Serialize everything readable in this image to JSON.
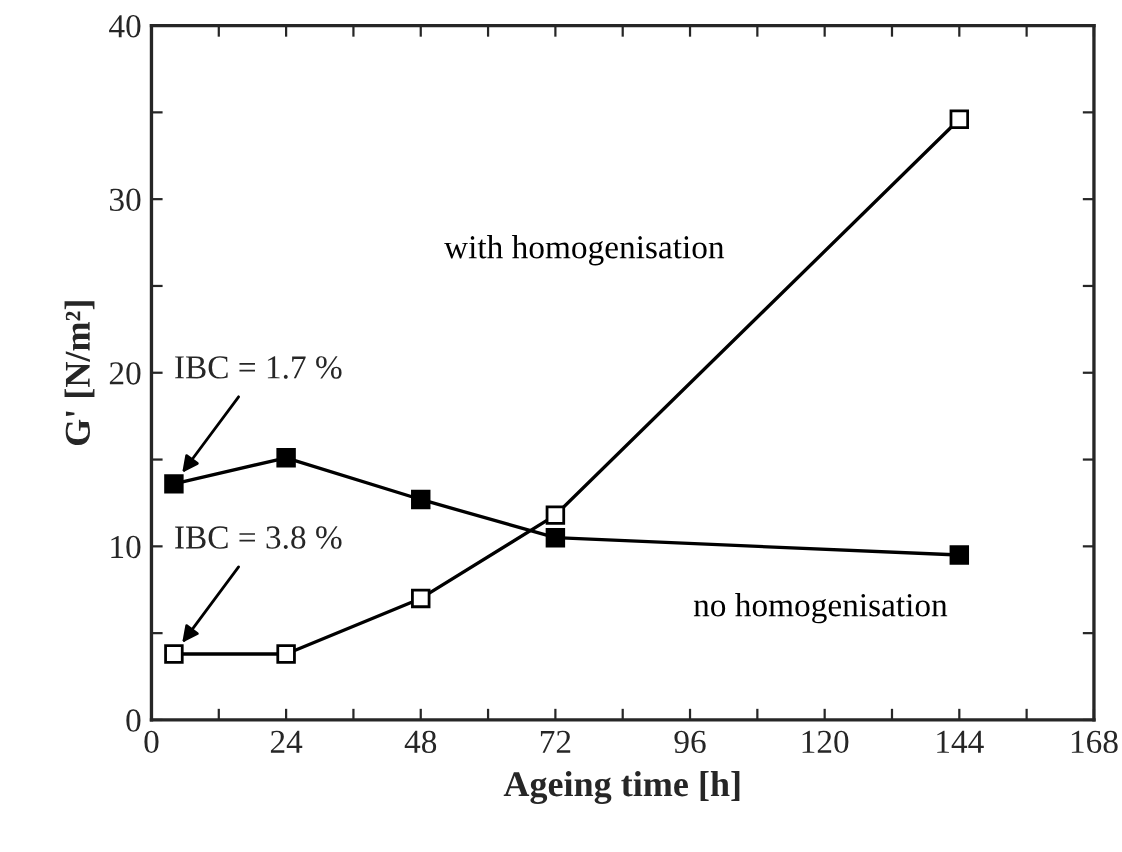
{
  "chart_data": {
    "type": "line",
    "xlabel": "Ageing time [h]",
    "ylabel": "G' [N/m²]",
    "x": [
      4,
      24,
      48,
      72,
      144
    ],
    "series": [
      {
        "name": "no homogenisation",
        "color": "#000000",
        "marker": "square",
        "values": [
          13.6,
          15.1,
          12.7,
          10.5,
          9.5
        ]
      },
      {
        "name": "with homogenisation",
        "color": "#000000",
        "marker": "square",
        "values": [
          3.8,
          3.8,
          7.0,
          11.8,
          34.6
        ]
      }
    ],
    "annotations": [
      {
        "text": "IBC = 1.7 %",
        "x": 4,
        "y": 13.6
      },
      {
        "text": "IBC = 3.8 %",
        "x": 4,
        "y": 3.8
      }
    ],
    "xlim": [
      0,
      168
    ],
    "xticks": [
      0,
      {
        "value": 12,
        "label": null
      },
      24,
      {
        "value": 36,
        "label": null
      },
      48,
      {
        "value": 60,
        "label": null
      },
      72,
      {
        "value": 84,
        "label": null
      },
      96,
      {
        "value": 108,
        "label": null
      },
      120,
      {
        "value": 132,
        "label": null
      },
      144,
      {
        "value": 156,
        "label": null
      },
      168
    ],
    "ylim": [
      0,
      40
    ],
    "yticks": [
      0,
      {
        "value": 5,
        "label": null
      },
      10,
      {
        "value": 15,
        "label": null
      },
      20,
      {
        "value": 25,
        "label": null
      },
      30,
      {
        "value": 35,
        "label": null
      },
      40
    ],
    "grid": false,
    "legend": false,
    "line_style": "solid"
  }
}
